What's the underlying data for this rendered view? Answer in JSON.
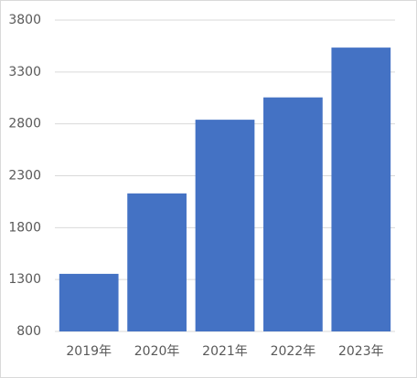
{
  "chart_data": {
    "type": "bar",
    "categories": [
      "2019年",
      "2020年",
      "2021年",
      "2022年",
      "2023年"
    ],
    "values": [
      1355,
      2130,
      2840,
      3055,
      3535
    ],
    "color": "#4472c4",
    "ylim": [
      800,
      3800
    ],
    "yticks": [
      800,
      1300,
      1800,
      2300,
      2800,
      3300,
      3800
    ],
    "grid": true
  }
}
